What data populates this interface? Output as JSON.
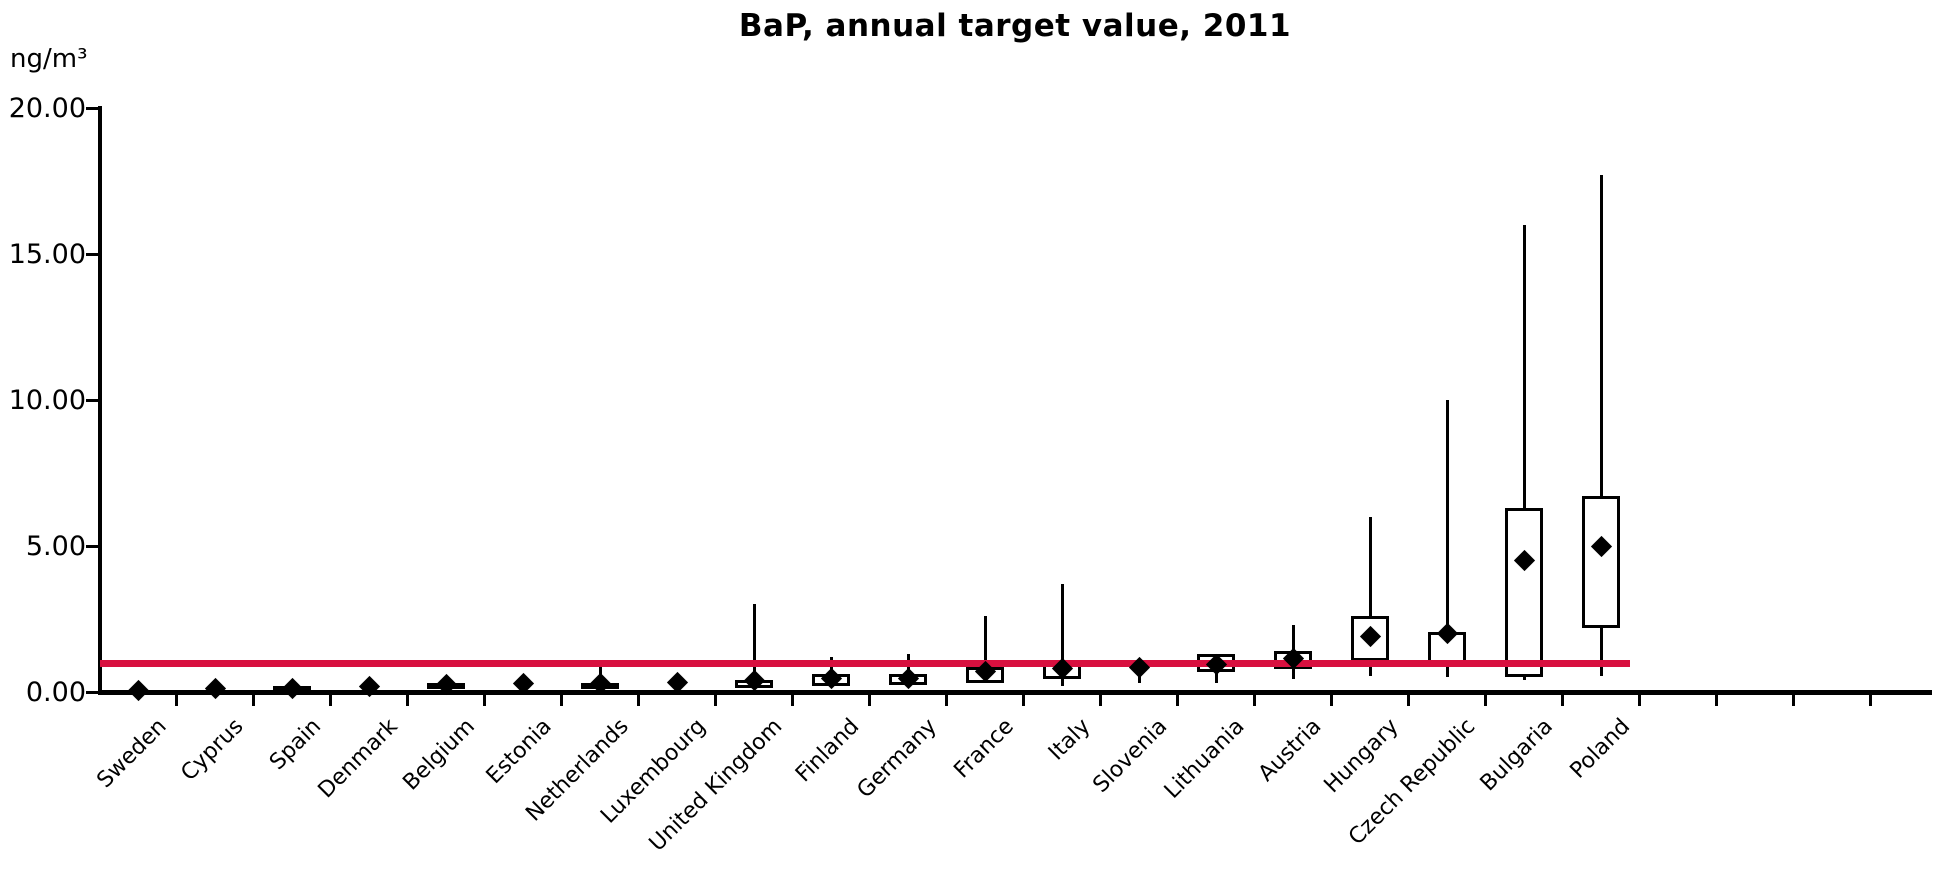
{
  "title": "BaP, annual target value, 2011",
  "y_axis": {
    "unit_label": "ng/m³",
    "tick_labels": [
      "0.00",
      "5.00",
      "10.00",
      "15.00",
      "20.00"
    ]
  },
  "target_line": {
    "value": 1.0,
    "color": "#d8103f"
  },
  "chart_data": {
    "type": "boxplot",
    "title": "BaP, annual target value, 2011",
    "xlabel": "",
    "ylabel": "ng/m³",
    "ylim": [
      0,
      20
    ],
    "y_ticks": [
      0,
      5,
      10,
      15,
      20
    ],
    "grid": false,
    "legend": "none",
    "target_value": 1.0,
    "marker_meaning": "mean (diamond)",
    "categories": [
      "Sweden",
      "Cyprus",
      "Spain",
      "Denmark",
      "Belgium",
      "Estonia",
      "Netherlands",
      "Luxembourg",
      "United Kingdom",
      "Finland",
      "Germany",
      "France",
      "Italy",
      "Slovenia",
      "Lithuania",
      "Austria",
      "Hungary",
      "Czech Republic",
      "Bulgaria",
      "Poland"
    ],
    "series": [
      {
        "name": "Sweden",
        "mean": 0.05,
        "q1": null,
        "q3": null,
        "whisker_low": null,
        "whisker_high": null
      },
      {
        "name": "Cyprus",
        "mean": 0.12,
        "q1": null,
        "q3": null,
        "whisker_low": null,
        "whisker_high": null
      },
      {
        "name": "Spain",
        "mean": 0.13,
        "q1": 0.05,
        "q3": 0.2,
        "whisker_low": null,
        "whisker_high": null
      },
      {
        "name": "Denmark",
        "mean": 0.2,
        "q1": null,
        "q3": null,
        "whisker_low": null,
        "whisker_high": null
      },
      {
        "name": "Belgium",
        "mean": 0.25,
        "q1": 0.15,
        "q3": 0.3,
        "whisker_low": null,
        "whisker_high": null
      },
      {
        "name": "Estonia",
        "mean": 0.28,
        "q1": null,
        "q3": null,
        "whisker_low": null,
        "whisker_high": null
      },
      {
        "name": "Netherlands",
        "mean": 0.3,
        "q1": 0.12,
        "q3": 0.3,
        "whisker_low": null,
        "whisker_high": 0.85
      },
      {
        "name": "Luxembourg",
        "mean": 0.33,
        "q1": null,
        "q3": null,
        "whisker_low": null,
        "whisker_high": null
      },
      {
        "name": "United Kingdom",
        "mean": 0.38,
        "q1": 0.15,
        "q3": 0.42,
        "whisker_low": null,
        "whisker_high": 3.0
      },
      {
        "name": "Finland",
        "mean": 0.45,
        "q1": 0.2,
        "q3": 0.6,
        "whisker_low": null,
        "whisker_high": 1.2
      },
      {
        "name": "Germany",
        "mean": 0.45,
        "q1": 0.25,
        "q3": 0.6,
        "whisker_low": null,
        "whisker_high": 1.3
      },
      {
        "name": "France",
        "mean": 0.7,
        "q1": 0.3,
        "q3": 0.85,
        "whisker_low": null,
        "whisker_high": 2.6
      },
      {
        "name": "Italy",
        "mean": 0.8,
        "q1": 0.45,
        "q3": 0.95,
        "whisker_low": 0.2,
        "whisker_high": 3.7
      },
      {
        "name": "Slovenia",
        "mean": 0.85,
        "q1": null,
        "q3": null,
        "whisker_low": 0.3,
        "whisker_high": null
      },
      {
        "name": "Lithuania",
        "mean": 0.95,
        "q1": 0.7,
        "q3": 1.3,
        "whisker_low": 0.3,
        "whisker_high": null
      },
      {
        "name": "Austria",
        "mean": 1.15,
        "q1": 0.8,
        "q3": 1.4,
        "whisker_low": 0.45,
        "whisker_high": 2.3
      },
      {
        "name": "Hungary",
        "mean": 1.9,
        "q1": 1.05,
        "q3": 2.6,
        "whisker_low": 0.55,
        "whisker_high": 6.0
      },
      {
        "name": "Czech Republic",
        "mean": 2.0,
        "q1": 0.9,
        "q3": 2.05,
        "whisker_low": 0.5,
        "whisker_high": 10.0
      },
      {
        "name": "Bulgaria",
        "mean": 4.5,
        "q1": 0.5,
        "q3": 6.3,
        "whisker_low": 0.4,
        "whisker_high": 16.0
      },
      {
        "name": "Poland",
        "mean": 5.0,
        "q1": 2.2,
        "q3": 6.7,
        "whisker_low": 0.55,
        "whisker_high": 17.7
      }
    ]
  }
}
